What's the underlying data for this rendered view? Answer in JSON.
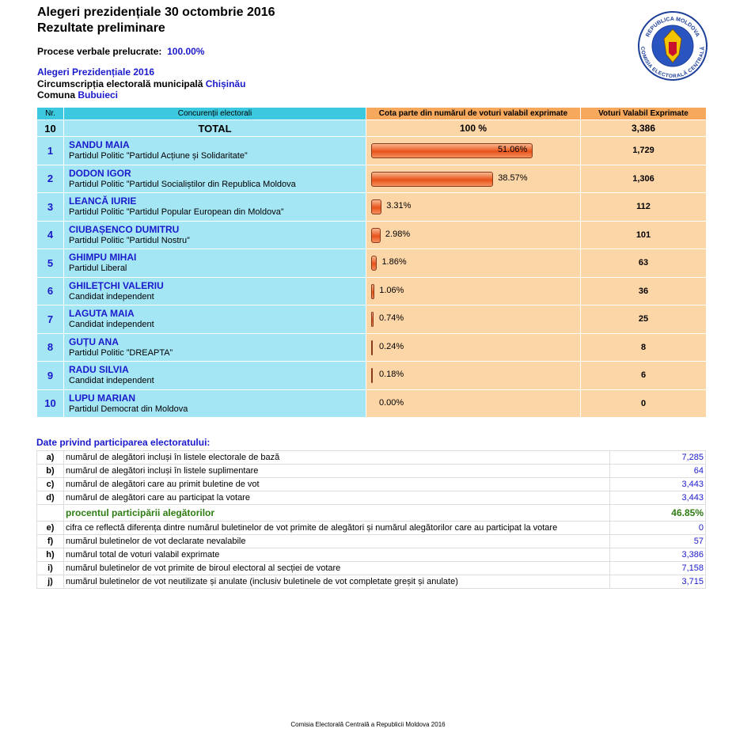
{
  "header": {
    "title": "Alegeri prezidențiale 30 octombrie 2016",
    "subtitle": "Rezultate preliminare",
    "processed_label": "Procese verbale prelucrate:",
    "processed_value": "100.00%"
  },
  "logo": {
    "top": "REPUBLICA MOLDOVA",
    "bottom": "COMISIA ELECTORALĂ CENTRALĂ"
  },
  "context": {
    "election": "Alegeri Prezidențiale 2016",
    "circumscription_label": "Circumscripția electorală municipală",
    "circumscription": "Chișinău",
    "commune_label": "Comuna",
    "commune": "Bubuieci"
  },
  "table": {
    "columns": [
      "Nr.",
      "Concurenții electorali",
      "Cota parte din numărul de voturi valabil exprimate",
      "Voturi Valabil Exprimate"
    ],
    "total": {
      "nr": 10,
      "label": "TOTAL",
      "share": "100 %",
      "votes": "3,386"
    },
    "candidates": [
      {
        "nr": 1,
        "name": "SANDU MAIA",
        "party": "Partidul Politic ”Partidul Acțiune și Solidaritate”",
        "share": 51.06,
        "share_label": "51.06%",
        "votes": "1,729"
      },
      {
        "nr": 2,
        "name": "DODON IGOR",
        "party": "Partidul Politic ”Partidul Socialiștilor din Republica Moldova",
        "share": 38.57,
        "share_label": "38.57%",
        "votes": "1,306"
      },
      {
        "nr": 3,
        "name": "LEANCĂ IURIE",
        "party": "Partidul Politic ”Partidul Popular European din Moldova”",
        "share": 3.31,
        "share_label": "3.31%",
        "votes": "112"
      },
      {
        "nr": 4,
        "name": "CIUBAȘENCO DUMITRU",
        "party": "Partidul Politic ”Partidul Nostru”",
        "share": 2.98,
        "share_label": "2.98%",
        "votes": "101"
      },
      {
        "nr": 5,
        "name": "GHIMPU MIHAI",
        "party": "Partidul Liberal",
        "share": 1.86,
        "share_label": "1.86%",
        "votes": "63"
      },
      {
        "nr": 6,
        "name": "GHILEȚCHI VALERIU",
        "party": "Candidat independent",
        "share": 1.06,
        "share_label": "1.06%",
        "votes": "36"
      },
      {
        "nr": 7,
        "name": "LAGUTA MAIA",
        "party": "Candidat independent",
        "share": 0.74,
        "share_label": "0.74%",
        "votes": "25"
      },
      {
        "nr": 8,
        "name": "GUȚU ANA",
        "party": "Partidul Politic ”DREAPTA”",
        "share": 0.24,
        "share_label": "0.24%",
        "votes": "8"
      },
      {
        "nr": 9,
        "name": "RADU SILVIA",
        "party": "Candidat independent",
        "share": 0.18,
        "share_label": "0.18%",
        "votes": "6"
      },
      {
        "nr": 10,
        "name": "LUPU MARIAN",
        "party": "Partidul Democrat din Moldova",
        "share": 0,
        "share_label": "0.00%",
        "votes": "0"
      }
    ]
  },
  "participation": {
    "title": "Date privind participarea electoratului:",
    "rows": [
      {
        "key": "a)",
        "text": "numărul de alegători incluși în listele electorale de bază",
        "value": "7,285"
      },
      {
        "key": "b)",
        "text": "numărul de alegători incluși în listele suplimentare",
        "value": "64"
      },
      {
        "key": "c)",
        "text": "numărul de alegători care au primit buletine de vot",
        "value": "3,443"
      },
      {
        "key": "d)",
        "text": "numărul de alegători care au participat la votare",
        "value": "3,443"
      },
      {
        "text": "procentul participării alegătorilor",
        "value": "46.85%"
      },
      {
        "key": "e)",
        "text": "cifra ce reflectă diferența dintre numărul buletinelor de vot primite de alegători și numărul alegătorilor care au participat la votare",
        "value": "0"
      },
      {
        "key": "f)",
        "text": "numărul buletinelor de vot declarate nevalabile",
        "value": "57"
      },
      {
        "key": "h)",
        "text": "numărul total de voturi valabil exprimate",
        "value": "3,386"
      },
      {
        "key": "i)",
        "text": "numărul buletinelor de vot primite de biroul electoral al secției de votare",
        "value": "7,158"
      },
      {
        "key": "j)",
        "text": "numărul buletinelor de vot neutilizate și anulate (inclusiv buletinele de vot completate greșit și anulate)",
        "value": "3,715"
      }
    ]
  },
  "footer": "Comisia Electorală Centrală a Republicii Moldova 2016"
}
